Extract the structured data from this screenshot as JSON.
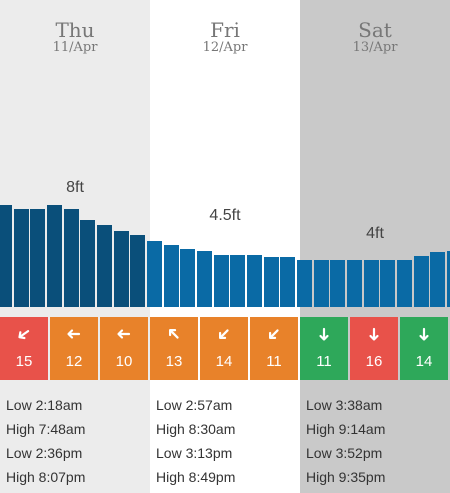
{
  "days": [
    {
      "name": "Thu",
      "date": "11/Apr",
      "height": "8ft",
      "tides": [
        "Low 2:18am",
        "High 7:48am",
        "Low 2:36pm",
        "High 8:07pm"
      ]
    },
    {
      "name": "Fri",
      "date": "12/Apr",
      "height": "4.5ft",
      "tides": [
        "Low 2:57am",
        "High 8:30am",
        "Low 3:13pm",
        "High 8:49pm"
      ]
    },
    {
      "name": "Sat",
      "date": "13/Apr",
      "height": "4ft",
      "tides": [
        "Low 3:38am",
        "High 9:14am",
        "Low 3:52pm",
        "High 9:35pm"
      ]
    }
  ],
  "wind": [
    {
      "speed": "15",
      "color": "#e8524a",
      "direction_deg": 235
    },
    {
      "speed": "12",
      "color": "#e8822a",
      "direction_deg": 270
    },
    {
      "speed": "10",
      "color": "#e8822a",
      "direction_deg": 270
    },
    {
      "speed": "13",
      "color": "#e8822a",
      "direction_deg": 315
    },
    {
      "speed": "14",
      "color": "#e8822a",
      "direction_deg": 225
    },
    {
      "speed": "11",
      "color": "#e8822a",
      "direction_deg": 225
    },
    {
      "speed": "11",
      "color": "#2ea85a",
      "direction_deg": 180
    },
    {
      "speed": "16",
      "color": "#e8524a",
      "direction_deg": 180
    },
    {
      "speed": "14",
      "color": "#2ea85a",
      "direction_deg": 180
    }
  ],
  "chart_data": {
    "type": "bar",
    "bar_colors": [
      "#0a4f7a",
      "#0a6aa5",
      "#0a6aa5"
    ],
    "values_ft": [
      8.2,
      7.9,
      7.9,
      8.2,
      7.9,
      7.0,
      6.6,
      6.1,
      5.8,
      5.3,
      5.0,
      4.7,
      4.5,
      4.2,
      4.2,
      4.2,
      4.0,
      4.0,
      3.8,
      3.8,
      3.8,
      3.8,
      3.8,
      3.8,
      3.8,
      4.1,
      4.4,
      4.5
    ]
  }
}
